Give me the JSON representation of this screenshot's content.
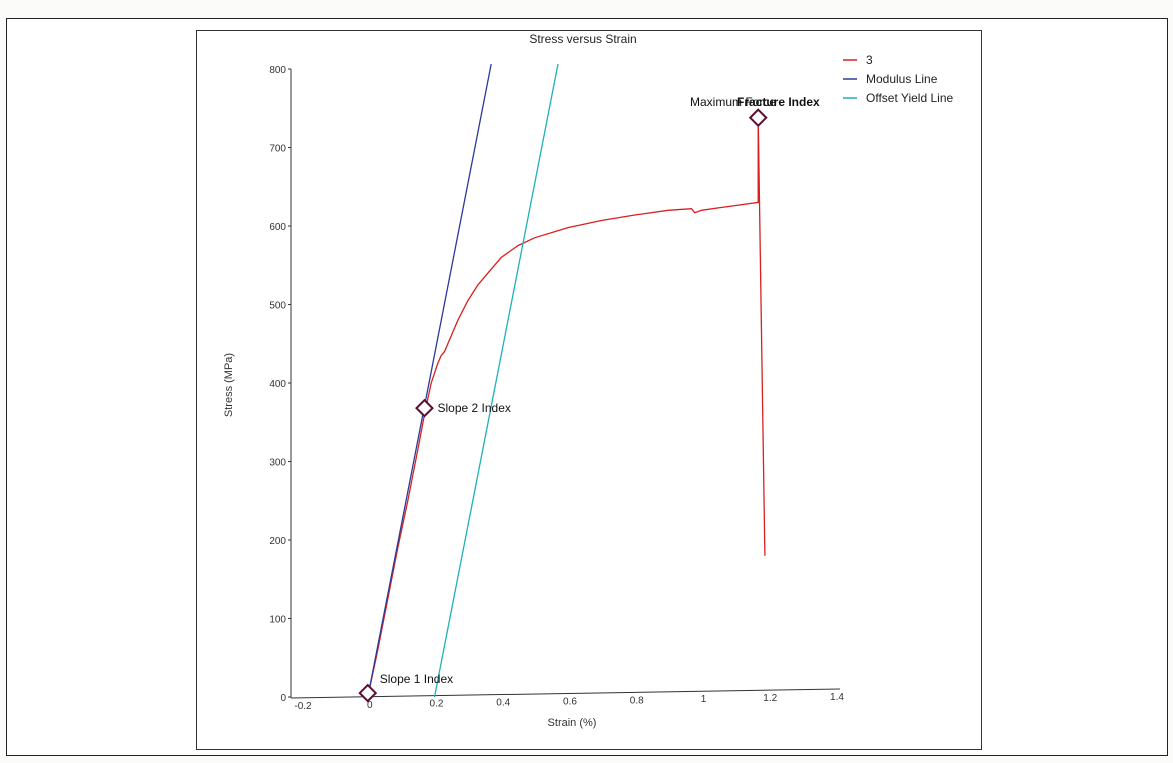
{
  "chart_data": {
    "type": "line",
    "title": "Stress versus Strain",
    "xlabel": "Strain (%)",
    "ylabel": "Stress (MPa)",
    "xlim": [
      -0.2,
      1.4
    ],
    "ylim": [
      0,
      800
    ],
    "x_ticks": [
      "-0.2",
      "0",
      "0.2",
      "0.4",
      "0.6",
      "0.8",
      "1",
      "1.2",
      "1.4"
    ],
    "y_ticks": [
      "0",
      "100",
      "200",
      "300",
      "400",
      "500",
      "600",
      "700",
      "800"
    ],
    "grid": false,
    "legend_position": "top-right",
    "series": [
      {
        "name": "3",
        "color": "#d92020",
        "x": [
          0,
          0.03,
          0.06,
          0.09,
          0.12,
          0.15,
          0.17,
          0.19,
          0.21,
          0.22,
          0.23,
          0.25,
          0.27,
          0.3,
          0.33,
          0.36,
          0.4,
          0.45,
          0.5,
          0.6,
          0.7,
          0.8,
          0.9,
          0.97,
          0.98,
          1.0,
          1.05,
          1.1,
          1.17,
          1.17,
          1.19
        ],
        "y": [
          0,
          60,
          125,
          190,
          250,
          315,
          360,
          400,
          425,
          435,
          440,
          460,
          480,
          505,
          525,
          540,
          560,
          575,
          585,
          598,
          607,
          614,
          620,
          622,
          617,
          620,
          623,
          626,
          630,
          740,
          180
        ]
      },
      {
        "name": "Modulus Line",
        "color": "#2a3a9a",
        "x": [
          0,
          0.37
        ],
        "y": [
          0,
          810
        ]
      },
      {
        "name": "Offset Yield Line",
        "color": "#1fb0b8",
        "x": [
          0.2,
          0.57
        ],
        "y": [
          0,
          810
        ]
      }
    ],
    "annotations": [
      {
        "label": "Slope 1 Index",
        "x": 0.0,
        "y": 5
      },
      {
        "label": "Slope 2 Index",
        "x": 0.17,
        "y": 368
      },
      {
        "label": "Maximum Force",
        "x": 1.17,
        "y": 738
      },
      {
        "label": "Fracture Index",
        "x": 1.17,
        "y": 738
      }
    ]
  },
  "marker_color": "#5a1030"
}
